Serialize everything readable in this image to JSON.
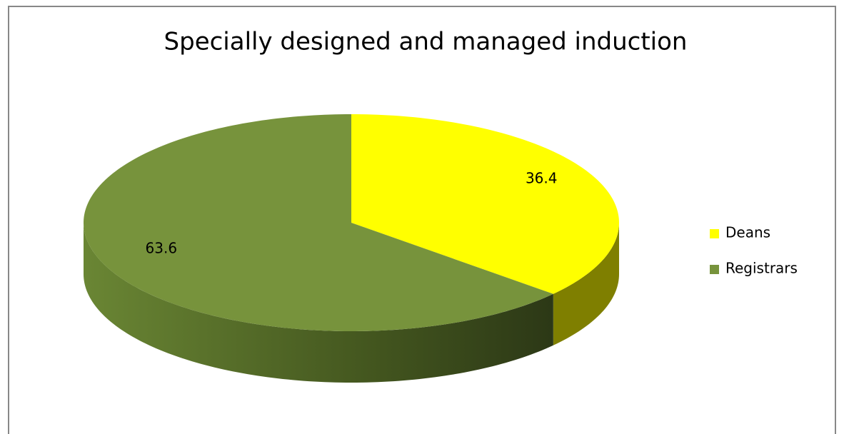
{
  "chart_data": {
    "type": "pie",
    "title": "Specially designed and  managed induction",
    "categories": [
      "Deans",
      "Registrars"
    ],
    "values": [
      36.4,
      63.6
    ],
    "colors": [
      "#ffff00",
      "#77933c"
    ],
    "legend": "right"
  }
}
